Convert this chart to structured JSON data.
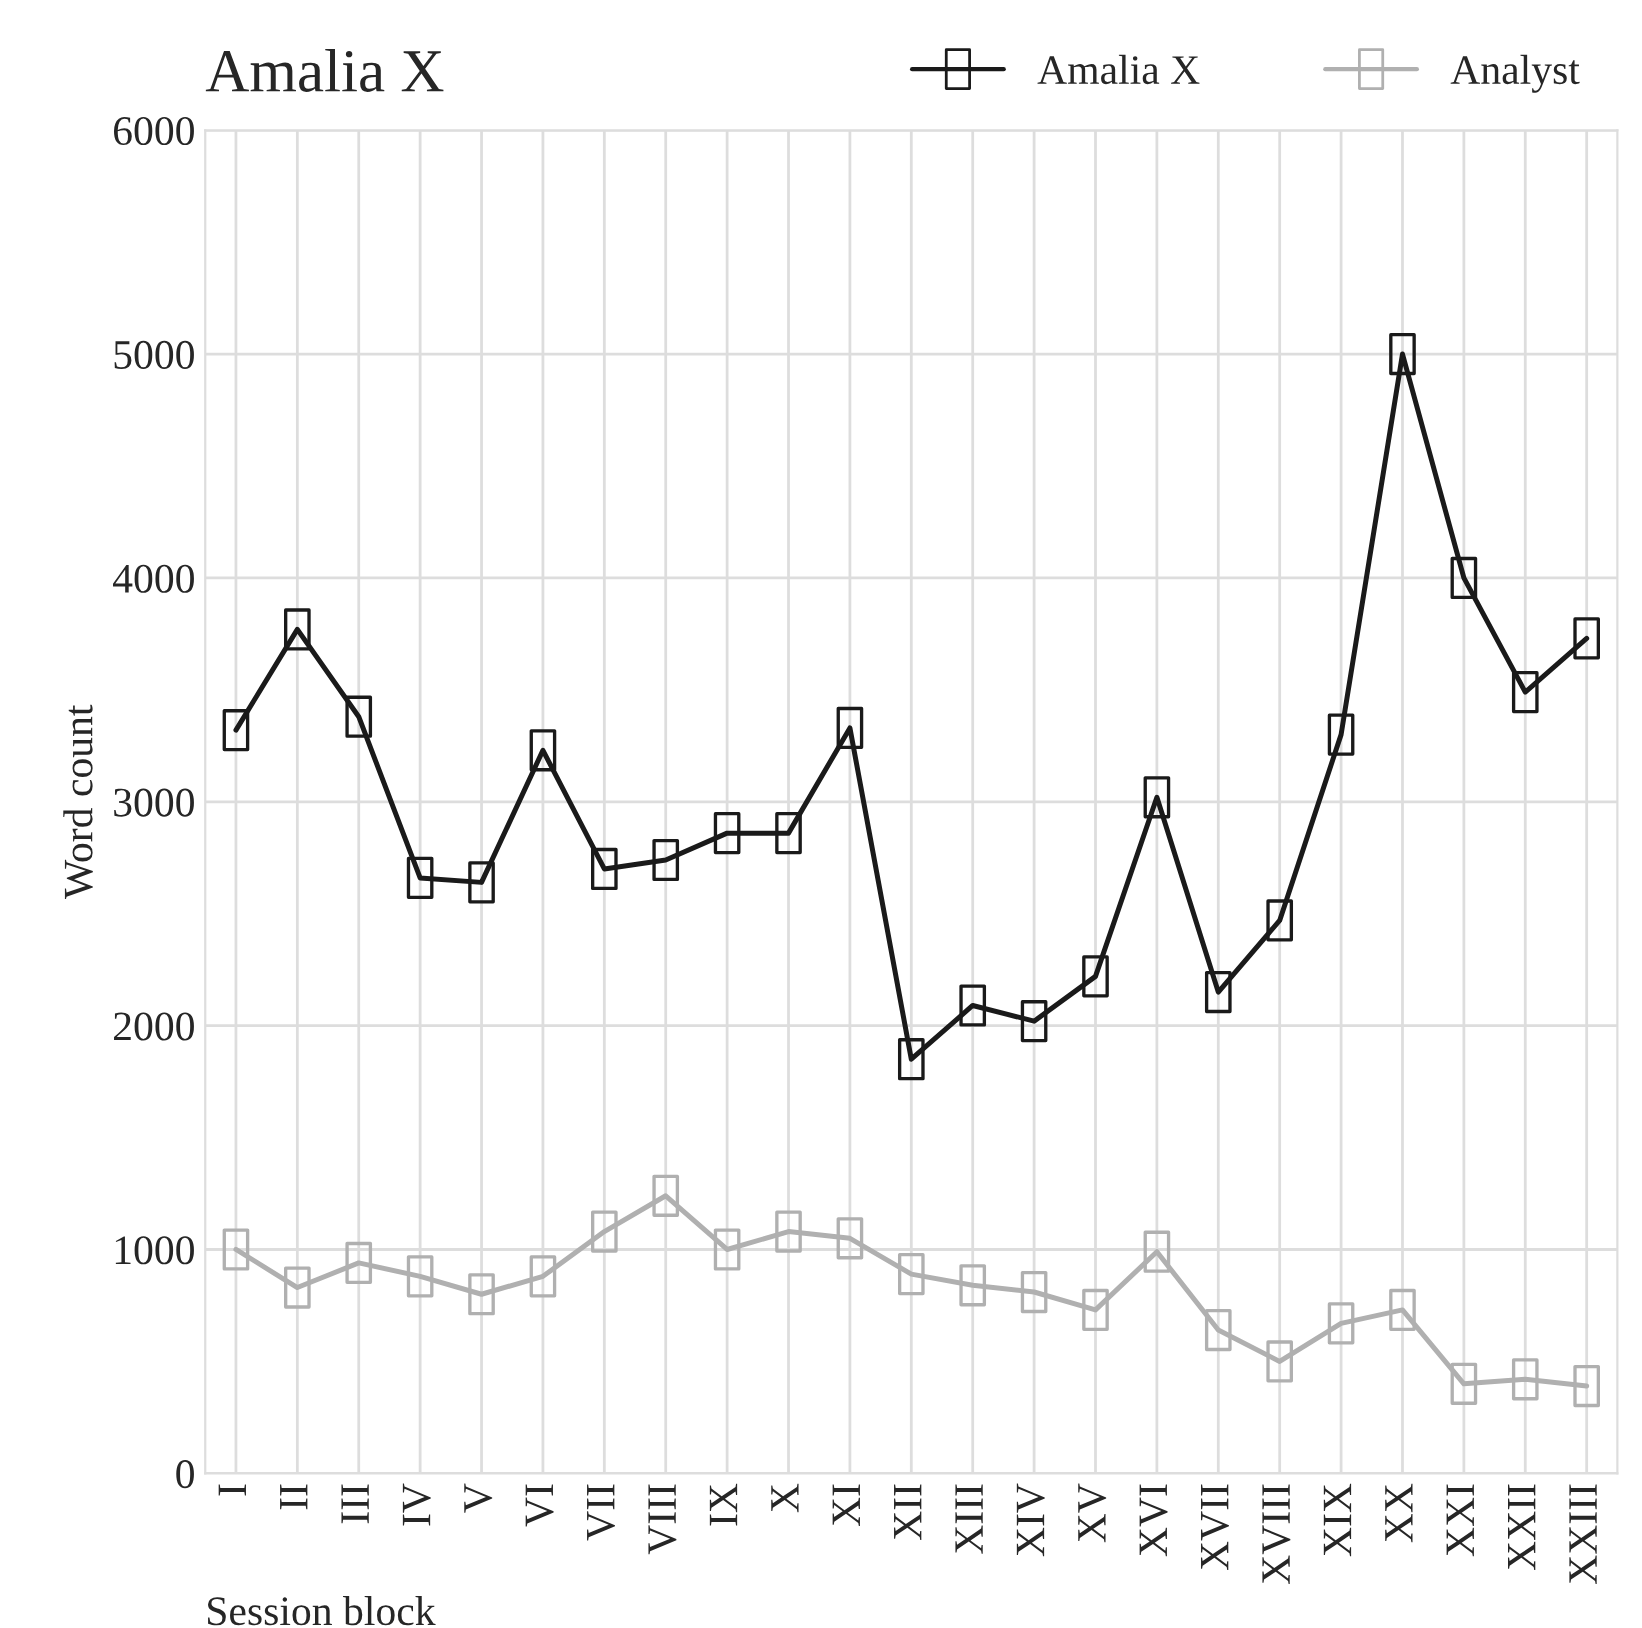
{
  "chart_data": {
    "type": "line",
    "title": "Amalia X",
    "xlabel": "Session block",
    "ylabel": "Word count",
    "categories": [
      "I",
      "II",
      "III",
      "IV",
      "V",
      "VI",
      "VII",
      "VIII",
      "IX",
      "X",
      "XI",
      "XII",
      "XIII",
      "XIV",
      "XV",
      "XVI",
      "XVII",
      "XVIII",
      "XIX",
      "XX",
      "XXI",
      "XXII",
      "XXIII"
    ],
    "series": [
      {
        "name": "Amalia X",
        "color": "#1a1a1a",
        "values": [
          3320,
          3770,
          3380,
          2660,
          2640,
          3230,
          2700,
          2740,
          2860,
          2860,
          3330,
          1850,
          2090,
          2020,
          2220,
          3020,
          2150,
          2470,
          3300,
          5000,
          4000,
          3490,
          3730
        ]
      },
      {
        "name": "Analyst",
        "color": "#b0b0b0",
        "values": [
          1000,
          830,
          940,
          880,
          800,
          880,
          1080,
          1240,
          1000,
          1080,
          1050,
          890,
          840,
          810,
          730,
          990,
          640,
          500,
          670,
          730,
          400,
          420,
          390
        ]
      }
    ],
    "ylim": [
      0,
      6000
    ],
    "yticks": [
      0,
      1000,
      2000,
      3000,
      4000,
      5000,
      6000
    ],
    "grid": true,
    "legend": "top right",
    "marker": "square",
    "line_style": "solid"
  }
}
